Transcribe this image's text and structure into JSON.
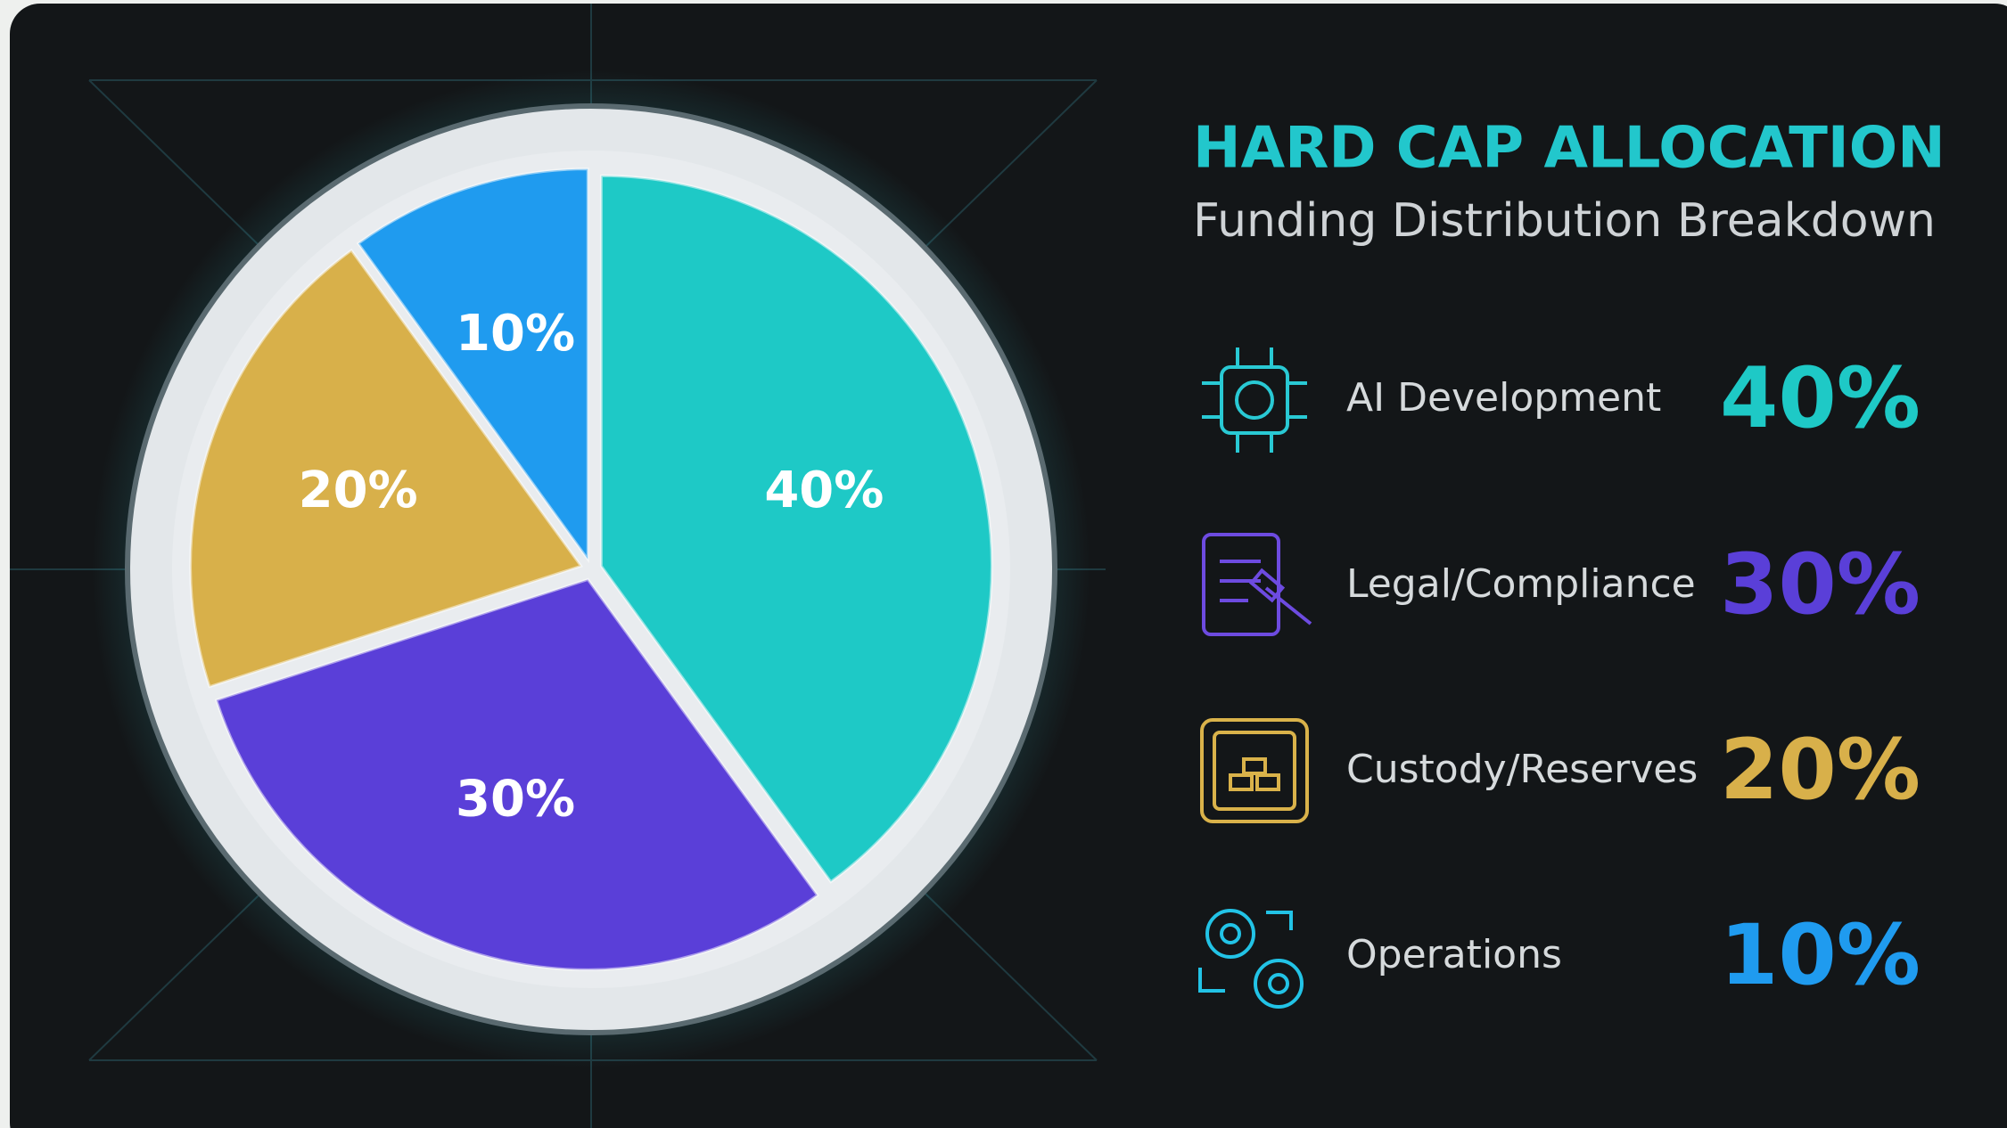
{
  "chart_data": {
    "type": "pie",
    "title": "HARD CAP ALLOCATION",
    "subtitle": "Funding Distribution Breakdown",
    "categories": [
      "AI Development",
      "Legal/Compliance",
      "Custody/Reserves",
      "Operations"
    ],
    "values": [
      40,
      30,
      20,
      10
    ],
    "value_labels": [
      "40%",
      "30%",
      "20%",
      "10%"
    ],
    "colors": [
      "#1ec9c6",
      "#5a3fd8",
      "#d8b04a",
      "#1f9bef"
    ]
  }
}
